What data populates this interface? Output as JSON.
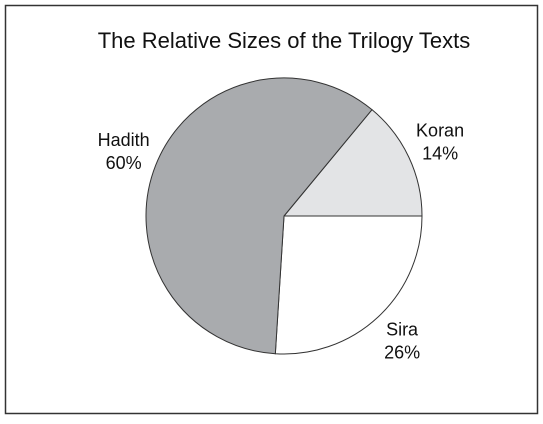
{
  "chart_data": {
    "type": "pie",
    "title": "The Relative Sizes of the Trilogy Texts",
    "categories": [
      "Koran",
      "Sira",
      "Hadith"
    ],
    "values": [
      14,
      26,
      60
    ],
    "value_labels": [
      "14%",
      "26%",
      "60%"
    ],
    "colors": [
      "#e3e4e6",
      "#ffffff",
      "#a9abae"
    ]
  }
}
